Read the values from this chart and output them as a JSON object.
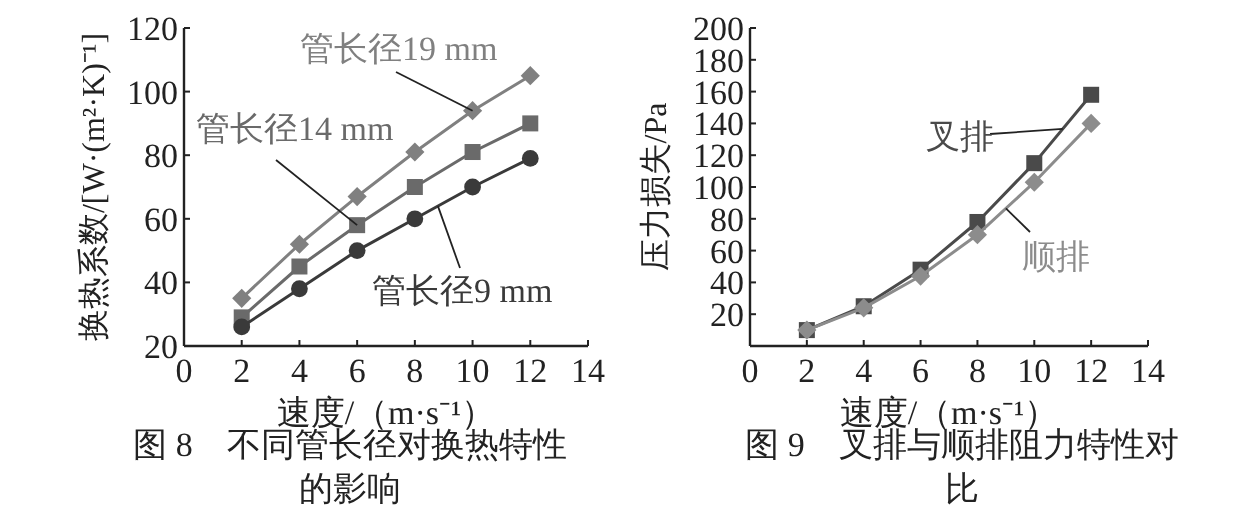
{
  "chart_data": [
    {
      "type": "line",
      "xlabel": "速度/（m·s⁻¹）",
      "ylabel": "换热系数/[W·(m²·K)⁻¹]",
      "xlim": [
        0,
        14
      ],
      "xticks": [
        0,
        2,
        4,
        6,
        8,
        10,
        12,
        14
      ],
      "ylim": [
        20,
        120
      ],
      "yticks": [
        20,
        40,
        60,
        80,
        100,
        120
      ],
      "grid": false,
      "legend": false,
      "x": [
        2,
        4,
        6,
        8,
        10,
        12
      ],
      "series": [
        {
          "name": "管长径19 mm",
          "color": "#808080",
          "marker": "diamond",
          "values": [
            35,
            52,
            67,
            81,
            94,
            105
          ]
        },
        {
          "name": "管长径14 mm",
          "color": "#6a6a6a",
          "marker": "square",
          "values": [
            29,
            45,
            58,
            70,
            81,
            90
          ]
        },
        {
          "name": "管长径9 mm",
          "color": "#3a3a3a",
          "marker": "circle",
          "values": [
            26,
            38,
            50,
            60,
            70,
            79
          ]
        }
      ],
      "annotations": [
        "图 8　不同管长径对换热特性的影响"
      ]
    },
    {
      "type": "line",
      "xlabel": "速度/（m·s⁻¹）",
      "ylabel": "压力损失/Pa",
      "xlim": [
        0,
        14
      ],
      "xticks": [
        0,
        2,
        4,
        6,
        8,
        10,
        12,
        14
      ],
      "ylim": [
        0,
        200
      ],
      "yticks": [
        20,
        40,
        60,
        80,
        100,
        120,
        140,
        160,
        180,
        200
      ],
      "grid": false,
      "legend": false,
      "x": [
        2,
        4,
        6,
        8,
        10,
        12
      ],
      "series": [
        {
          "name": "叉排",
          "color": "#4a4a4a",
          "marker": "square",
          "values": [
            10,
            25,
            48,
            78,
            115,
            158
          ]
        },
        {
          "name": "顺排",
          "color": "#8c8c8c",
          "marker": "diamond",
          "values": [
            10,
            24,
            44,
            70,
            103,
            140
          ]
        }
      ],
      "annotations": [
        "图 9　叉排与顺排阻力特性对比"
      ]
    }
  ]
}
